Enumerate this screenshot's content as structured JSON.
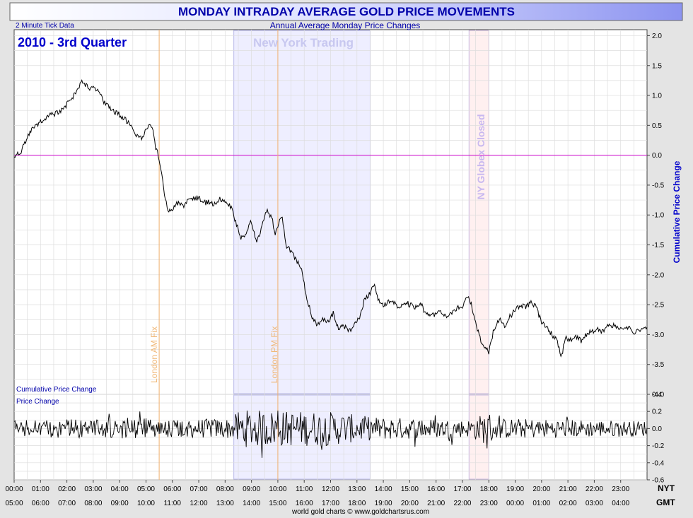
{
  "header": {
    "title": "MONDAY INTRADAY AVERAGE GOLD PRICE MOVEMENTS",
    "subtitle": "Annual Average Monday Price Changes",
    "tick_note": "2 Minute Tick Data",
    "period": "2010 - 3rd Quarter",
    "footer": "world gold charts © www.goldchartsrus.com"
  },
  "colors": {
    "title_blue": "#0000aa",
    "price_line": "#000000",
    "zero_line": "#cc00cc",
    "ny_band": "#eeeeff",
    "globex_band": "#fff0f0",
    "fix_line": "#f0b070",
    "grid": "#dddddd"
  },
  "chart_data": [
    {
      "type": "line",
      "name_label": "Cumulative Price Change",
      "ylabel": "Cumulative Price Change",
      "ylim": [
        -4.0,
        2.1
      ],
      "y_ticks": [
        "2.0",
        "1.5",
        "1.0",
        "0.5",
        "0.0",
        "-0.5",
        "-1.0",
        "-1.5",
        "-2.0",
        "-2.5",
        "-3.0",
        "-3.5",
        "-4.0"
      ],
      "x_unit": "hours from NYT midnight",
      "xlim": [
        0,
        24
      ],
      "points": [
        [
          0,
          0.0
        ],
        [
          0.1,
          0.02
        ],
        [
          0.25,
          0.05
        ],
        [
          0.4,
          0.2
        ],
        [
          0.6,
          0.4
        ],
        [
          0.8,
          0.5
        ],
        [
          1.0,
          0.55
        ],
        [
          1.2,
          0.6
        ],
        [
          1.4,
          0.68
        ],
        [
          1.6,
          0.7
        ],
        [
          1.8,
          0.75
        ],
        [
          2.0,
          0.85
        ],
        [
          2.2,
          0.95
        ],
        [
          2.4,
          1.1
        ],
        [
          2.55,
          1.22
        ],
        [
          2.7,
          1.18
        ],
        [
          2.85,
          1.12
        ],
        [
          3.0,
          1.15
        ],
        [
          3.2,
          1.05
        ],
        [
          3.4,
          0.9
        ],
        [
          3.6,
          0.8
        ],
        [
          3.8,
          0.72
        ],
        [
          4.0,
          0.68
        ],
        [
          4.2,
          0.6
        ],
        [
          4.4,
          0.5
        ],
        [
          4.6,
          0.35
        ],
        [
          4.8,
          0.28
        ],
        [
          5.0,
          0.4
        ],
        [
          5.15,
          0.55
        ],
        [
          5.25,
          0.45
        ],
        [
          5.35,
          0.15
        ],
        [
          5.45,
          0.05
        ],
        [
          5.55,
          -0.2
        ],
        [
          5.65,
          -0.5
        ],
        [
          5.75,
          -0.75
        ],
        [
          5.85,
          -0.95
        ],
        [
          6.0,
          -0.9
        ],
        [
          6.2,
          -0.8
        ],
        [
          6.4,
          -0.85
        ],
        [
          6.6,
          -0.75
        ],
        [
          6.8,
          -0.72
        ],
        [
          7.0,
          -0.7
        ],
        [
          7.2,
          -0.8
        ],
        [
          7.4,
          -0.78
        ],
        [
          7.6,
          -0.82
        ],
        [
          7.8,
          -0.72
        ],
        [
          8.0,
          -0.78
        ],
        [
          8.2,
          -0.85
        ],
        [
          8.4,
          -1.1
        ],
        [
          8.6,
          -1.4
        ],
        [
          8.8,
          -1.3
        ],
        [
          9.0,
          -1.1
        ],
        [
          9.2,
          -1.45
        ],
        [
          9.4,
          -1.2
        ],
        [
          9.6,
          -0.9
        ],
        [
          9.8,
          -1.1
        ],
        [
          9.9,
          -1.35
        ],
        [
          10.0,
          -1.2
        ],
        [
          10.15,
          -1.0
        ],
        [
          10.3,
          -1.5
        ],
        [
          10.5,
          -1.6
        ],
        [
          10.7,
          -1.75
        ],
        [
          10.9,
          -1.9
        ],
        [
          11.1,
          -2.4
        ],
        [
          11.3,
          -2.7
        ],
        [
          11.5,
          -2.85
        ],
        [
          11.7,
          -2.75
        ],
        [
          11.9,
          -2.8
        ],
        [
          12.1,
          -2.65
        ],
        [
          12.3,
          -2.9
        ],
        [
          12.5,
          -2.85
        ],
        [
          12.7,
          -2.95
        ],
        [
          12.9,
          -2.85
        ],
        [
          13.1,
          -2.7
        ],
        [
          13.3,
          -2.4
        ],
        [
          13.5,
          -2.3
        ],
        [
          13.65,
          -2.15
        ],
        [
          13.8,
          -2.4
        ],
        [
          14.0,
          -2.5
        ],
        [
          14.2,
          -2.45
        ],
        [
          14.4,
          -2.45
        ],
        [
          14.6,
          -2.55
        ],
        [
          14.8,
          -2.45
        ],
        [
          15.0,
          -2.5
        ],
        [
          15.2,
          -2.55
        ],
        [
          15.4,
          -2.45
        ],
        [
          15.6,
          -2.65
        ],
        [
          15.8,
          -2.7
        ],
        [
          16.0,
          -2.65
        ],
        [
          16.2,
          -2.6
        ],
        [
          16.4,
          -2.7
        ],
        [
          16.6,
          -2.62
        ],
        [
          16.8,
          -2.55
        ],
        [
          17.0,
          -2.55
        ],
        [
          17.2,
          -2.35
        ],
        [
          17.35,
          -2.5
        ],
        [
          17.5,
          -2.8
        ],
        [
          17.7,
          -3.1
        ],
        [
          17.85,
          -3.2
        ],
        [
          18.0,
          -3.3
        ],
        [
          18.2,
          -2.9
        ],
        [
          18.4,
          -2.75
        ],
        [
          18.6,
          -2.85
        ],
        [
          18.8,
          -2.7
        ],
        [
          19.0,
          -2.6
        ],
        [
          19.2,
          -2.5
        ],
        [
          19.4,
          -2.55
        ],
        [
          19.6,
          -2.45
        ],
        [
          19.8,
          -2.55
        ],
        [
          20.0,
          -2.8
        ],
        [
          20.2,
          -2.9
        ],
        [
          20.4,
          -3.0
        ],
        [
          20.6,
          -3.1
        ],
        [
          20.75,
          -3.4
        ],
        [
          20.9,
          -3.05
        ],
        [
          21.1,
          -3.1
        ],
        [
          21.3,
          -3.05
        ],
        [
          21.5,
          -3.1
        ],
        [
          21.7,
          -3.0
        ],
        [
          21.9,
          -2.95
        ],
        [
          22.1,
          -2.9
        ],
        [
          22.3,
          -2.95
        ],
        [
          22.5,
          -2.85
        ],
        [
          22.7,
          -2.85
        ],
        [
          22.9,
          -2.9
        ],
        [
          23.1,
          -2.9
        ],
        [
          23.3,
          -2.88
        ],
        [
          23.5,
          -2.95
        ],
        [
          23.7,
          -2.95
        ],
        [
          23.9,
          -2.9
        ],
        [
          24.0,
          -2.92
        ]
      ]
    },
    {
      "type": "line",
      "name_label": "Price Change",
      "ylim": [
        -0.6,
        0.4
      ],
      "y_ticks": [
        "0.4",
        "0.2",
        "0.0",
        "-0.2",
        "-0.4",
        "-0.6"
      ],
      "x_unit": "hours from NYT midnight",
      "xlim": [
        0,
        24
      ],
      "interval_minutes": 2,
      "amplitude_profile": [
        [
          0,
          0.1
        ],
        [
          5.0,
          0.12
        ],
        [
          5.5,
          0.1
        ],
        [
          8.3,
          0.12
        ],
        [
          8.5,
          0.22
        ],
        [
          12.0,
          0.2
        ],
        [
          13.5,
          0.14
        ],
        [
          17.2,
          0.1
        ],
        [
          18.0,
          0.2
        ],
        [
          18.3,
          0.12
        ],
        [
          24,
          0.09
        ]
      ]
    }
  ],
  "time_axes": {
    "nyt_label": "NYT",
    "gmt_label": "GMT",
    "nyt_ticks": [
      "00:00",
      "01:00",
      "02:00",
      "03:00",
      "04:00",
      "05:00",
      "06:00",
      "07:00",
      "08:00",
      "09:00",
      "10:00",
      "11:00",
      "12:00",
      "13:00",
      "14:00",
      "15:00",
      "16:00",
      "17:00",
      "18:00",
      "19:00",
      "20:00",
      "21:00",
      "22:00",
      "23:00"
    ],
    "gmt_ticks": [
      "05:00",
      "06:00",
      "07:00",
      "08:00",
      "09:00",
      "10:00",
      "11:00",
      "12:00",
      "13:00",
      "14:00",
      "15:00",
      "16:00",
      "17:00",
      "18:00",
      "19:00",
      "20:00",
      "21:00",
      "22:00",
      "23:00",
      "00:00",
      "01:00",
      "02:00",
      "03:00",
      "04:00"
    ]
  },
  "annotations": {
    "ny_trading": {
      "label": "New York Trading",
      "start_hour": 8.33,
      "end_hour": 13.5
    },
    "globex_closed": {
      "label": "NY Globex Closed",
      "start_hour": 17.25,
      "end_hour": 18.0
    },
    "london_am_fix": {
      "label": "London AM Fix",
      "hour": 5.5
    },
    "london_pm_fix": {
      "label": "London PM Fix",
      "hour": 10.0
    }
  }
}
